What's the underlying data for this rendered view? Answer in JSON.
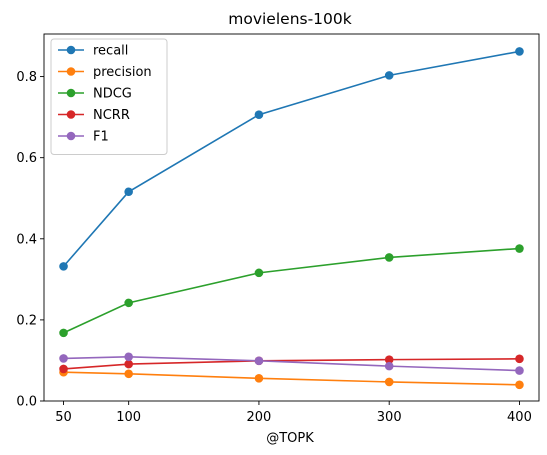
{
  "chart_data": {
    "type": "line",
    "title": "movielens-100k",
    "xlabel": "@TOPK",
    "ylabel": "",
    "x": [
      50,
      100,
      200,
      300,
      400
    ],
    "xlim": [
      35,
      415
    ],
    "ylim": [
      0,
      0.905
    ],
    "xticks": [
      50,
      100,
      200,
      300,
      400
    ],
    "yticks": [
      0.0,
      0.2,
      0.4,
      0.6,
      0.8
    ],
    "ytick_labels": [
      "0.0",
      "0.2",
      "0.4",
      "0.6",
      "0.8"
    ],
    "grid": false,
    "legend_position": "top-left",
    "series": [
      {
        "name": "recall",
        "color": "#1f77b4",
        "values": [
          0.332,
          0.516,
          0.706,
          0.803,
          0.862
        ]
      },
      {
        "name": "precision",
        "color": "#ff7f0e",
        "values": [
          0.071,
          0.067,
          0.056,
          0.047,
          0.04
        ]
      },
      {
        "name": "NDCG",
        "color": "#2ca02c",
        "values": [
          0.168,
          0.242,
          0.316,
          0.354,
          0.376
        ]
      },
      {
        "name": "NCRR",
        "color": "#d62728",
        "values": [
          0.079,
          0.091,
          0.099,
          0.102,
          0.104
        ]
      },
      {
        "name": "F1",
        "color": "#9467bd",
        "values": [
          0.105,
          0.109,
          0.099,
          0.086,
          0.075
        ]
      }
    ]
  }
}
